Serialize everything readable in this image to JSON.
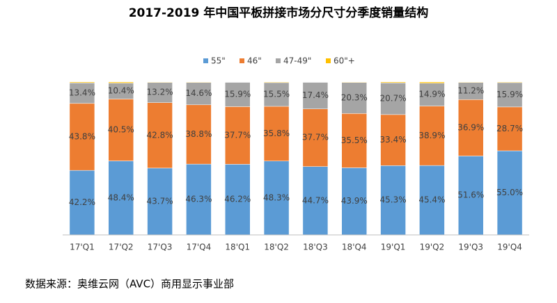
{
  "chart_data": {
    "type": "stacked_bar_100",
    "title": "2017-2019 年中国平板拼接市场分尺寸分季度销量结构",
    "categories": [
      "17'Q1",
      "17'Q2",
      "17'Q3",
      "17'Q4",
      "18'Q1",
      "18'Q2",
      "18'Q3",
      "18'Q4",
      "19'Q1",
      "19'Q2",
      "19'Q3",
      "19'Q4"
    ],
    "series": [
      {
        "name": "55\"",
        "color": "#5b9bd5",
        "values": [
          42.2,
          48.4,
          43.7,
          46.3,
          46.2,
          48.3,
          44.7,
          43.9,
          45.3,
          45.4,
          51.6,
          55.0
        ],
        "value_labels": [
          "42.2%",
          "48.4%",
          "43.7%",
          "46.3%",
          "46.2%",
          "48.3%",
          "44.7%",
          "43.9%",
          "45.3%",
          "45.4%",
          "51.6%",
          "55.0%"
        ]
      },
      {
        "name": "46\"",
        "color": "#ed7d31",
        "values": [
          43.8,
          40.5,
          42.8,
          38.8,
          37.7,
          35.8,
          37.7,
          35.5,
          33.4,
          38.9,
          36.9,
          28.7
        ],
        "value_labels": [
          "43.8%",
          "40.5%",
          "42.8%",
          "38.8%",
          "37.7%",
          "35.8%",
          "37.7%",
          "35.5%",
          "33.4%",
          "38.9%",
          "36.9%",
          "28.7%"
        ]
      },
      {
        "name": "47-49\"",
        "color": "#a5a5a5",
        "values": [
          13.4,
          10.4,
          13.2,
          14.6,
          15.9,
          15.5,
          17.4,
          20.3,
          20.7,
          14.9,
          11.2,
          15.9
        ],
        "value_labels": [
          "13.4%",
          "10.4%",
          "13.2%",
          "14.6%",
          "15.9%",
          "15.5%",
          "17.4%",
          "20.3%",
          "20.7%",
          "14.9%",
          "11.2%",
          "15.9%"
        ]
      },
      {
        "name": "60\"+",
        "color": "#ffc000",
        "values": [
          0.6,
          0.7,
          0.3,
          0.3,
          0.2,
          0.4,
          0.2,
          0.3,
          0.6,
          0.8,
          0.3,
          0.4
        ]
      }
    ],
    "ylim": [
      0,
      100
    ],
    "source": "数据来源：奥维云网（AVC）商用显示事业部"
  }
}
